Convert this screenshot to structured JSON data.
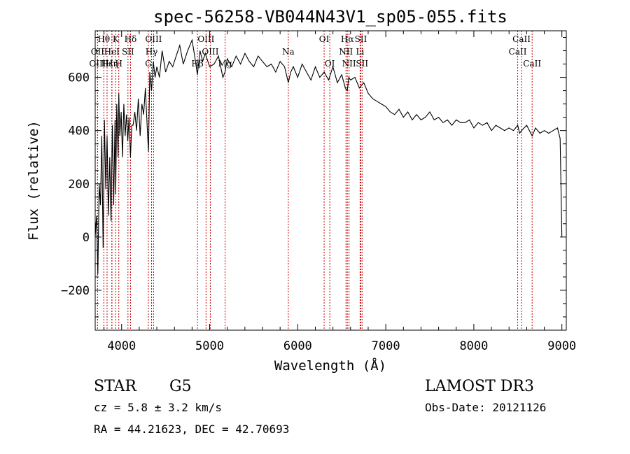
{
  "chart_data": {
    "type": "line",
    "title": "spec-56258-VB044N43V1_sp05-055.fits",
    "xlabel": "Wavelength (Å)",
    "ylabel": "Flux (relative)",
    "xlim": [
      3700,
      9050
    ],
    "ylim": [
      -350,
      775
    ],
    "x_ticks": [
      4000,
      5000,
      6000,
      7000,
      8000,
      9000
    ],
    "y_ticks": [
      -200,
      0,
      200,
      400,
      600
    ],
    "x_tick_labels": [
      "4000",
      "5000",
      "6000",
      "7000",
      "8000",
      "9000"
    ],
    "y_tick_labels": [
      "−200",
      "0",
      "200",
      "400",
      "600"
    ],
    "series": [
      {
        "name": "flux",
        "x": [
          3700,
          3715,
          3730,
          3745,
          3760,
          3775,
          3790,
          3805,
          3820,
          3835,
          3850,
          3865,
          3880,
          3895,
          3910,
          3925,
          3933,
          3945,
          3960,
          3968,
          3980,
          3995,
          4010,
          4025,
          4040,
          4055,
          4070,
          4085,
          4101,
          4115,
          4130,
          4150,
          4170,
          4190,
          4210,
          4230,
          4250,
          4270,
          4290,
          4305,
          4320,
          4340,
          4360,
          4380,
          4400,
          4430,
          4460,
          4500,
          4540,
          4580,
          4620,
          4660,
          4700,
          4750,
          4800,
          4830,
          4861,
          4890,
          4920,
          4950,
          5000,
          5050,
          5100,
          5150,
          5175,
          5200,
          5250,
          5300,
          5350,
          5400,
          5450,
          5500,
          5550,
          5600,
          5650,
          5700,
          5750,
          5800,
          5850,
          5893,
          5920,
          5950,
          6000,
          6050,
          6100,
          6150,
          6200,
          6250,
          6300,
          6350,
          6400,
          6450,
          6500,
          6540,
          6563,
          6580,
          6600,
          6650,
          6700,
          6750,
          6800,
          6850,
          6900,
          6950,
          7000,
          7050,
          7100,
          7150,
          7200,
          7250,
          7300,
          7350,
          7400,
          7450,
          7500,
          7550,
          7600,
          7650,
          7700,
          7750,
          7800,
          7850,
          7900,
          7950,
          8000,
          8050,
          8100,
          8150,
          8200,
          8250,
          8300,
          8350,
          8400,
          8450,
          8498,
          8520,
          8542,
          8600,
          8662,
          8700,
          8750,
          8800,
          8850,
          8900,
          8950,
          8980,
          9000
        ],
        "y": [
          0,
          80,
          -140,
          200,
          120,
          380,
          -40,
          440,
          180,
          380,
          80,
          300,
          60,
          420,
          120,
          440,
          160,
          500,
          300,
          540,
          380,
          470,
          300,
          500,
          380,
          460,
          360,
          450,
          300,
          420,
          420,
          470,
          400,
          520,
          380,
          500,
          460,
          560,
          420,
          320,
          620,
          550,
          660,
          600,
          640,
          600,
          700,
          620,
          660,
          640,
          680,
          720,
          650,
          700,
          740,
          680,
          610,
          700,
          660,
          690,
          640,
          650,
          680,
          600,
          620,
          670,
          640,
          680,
          650,
          690,
          660,
          640,
          680,
          660,
          640,
          650,
          620,
          660,
          640,
          580,
          620,
          640,
          600,
          650,
          620,
          590,
          640,
          600,
          620,
          590,
          640,
          580,
          610,
          560,
          550,
          600,
          590,
          600,
          560,
          580,
          540,
          520,
          510,
          500,
          490,
          470,
          460,
          480,
          450,
          470,
          440,
          460,
          440,
          450,
          470,
          440,
          450,
          430,
          440,
          420,
          440,
          430,
          430,
          440,
          410,
          430,
          420,
          430,
          400,
          420,
          410,
          400,
          410,
          400,
          420,
          390,
          400,
          420,
          380,
          410,
          390,
          400,
          390,
          400,
          410,
          370,
          0
        ]
      }
    ],
    "spectral_lines": [
      {
        "name": "Hθ",
        "wavelength": 3798,
        "row": 1
      },
      {
        "name": "OII",
        "wavelength": 3727,
        "row": 2
      },
      {
        "name": "OIII",
        "wavelength": 3727,
        "row": 3
      },
      {
        "name": "Hε",
        "wavelength": 3835,
        "row": 3
      },
      {
        "name": "Hη",
        "wavelength": 3890,
        "row": 3
      },
      {
        "name": "HeI",
        "wavelength": 3889,
        "row": 2
      },
      {
        "name": "K",
        "wavelength": 3933,
        "row": 1
      },
      {
        "name": "H",
        "wavelength": 3968,
        "row": 3
      },
      {
        "name": "SII",
        "wavelength": 4072,
        "row": 2
      },
      {
        "name": "Hδ",
        "wavelength": 4101,
        "row": 1
      },
      {
        "name": "OIII",
        "wavelength": 4363,
        "row": 1
      },
      {
        "name": "Hγ",
        "wavelength": 4340,
        "row": 2
      },
      {
        "name": "G",
        "wavelength": 4304,
        "row": 3
      },
      {
        "name": "Hβ",
        "wavelength": 4861,
        "row": 3
      },
      {
        "name": "OIII",
        "wavelength": 4959,
        "row": 1
      },
      {
        "name": "OIII",
        "wavelength": 5007,
        "row": 2
      },
      {
        "name": "Mg",
        "wavelength": 5175,
        "row": 3
      },
      {
        "name": "Na",
        "wavelength": 5893,
        "row": 2
      },
      {
        "name": "OI",
        "wavelength": 6300,
        "row": 1
      },
      {
        "name": "OI",
        "wavelength": 6364,
        "row": 3
      },
      {
        "name": "Hα",
        "wavelength": 6563,
        "row": 1
      },
      {
        "name": "NII",
        "wavelength": 6548,
        "row": 2
      },
      {
        "name": "NII",
        "wavelength": 6583,
        "row": 3
      },
      {
        "name": "SII",
        "wavelength": 6717,
        "row": 1
      },
      {
        "name": "Li",
        "wavelength": 6708,
        "row": 2
      },
      {
        "name": "SII",
        "wavelength": 6731,
        "row": 3
      },
      {
        "name": "CaII",
        "wavelength": 8542,
        "row": 1
      },
      {
        "name": "CaII",
        "wavelength": 8498,
        "row": 2
      },
      {
        "name": "CaII",
        "wavelength": 8662,
        "row": 3
      }
    ],
    "line_color": "#000000",
    "marker_color": "#cc0000"
  },
  "info": {
    "class": "STAR",
    "subclass": "G5",
    "survey": "LAMOST DR3",
    "redshift": "cz = 5.8 ± 3.2 km/s",
    "obs_date": "Obs-Date: 20121126",
    "coords": "RA =  44.21623, DEC =  42.70693"
  }
}
